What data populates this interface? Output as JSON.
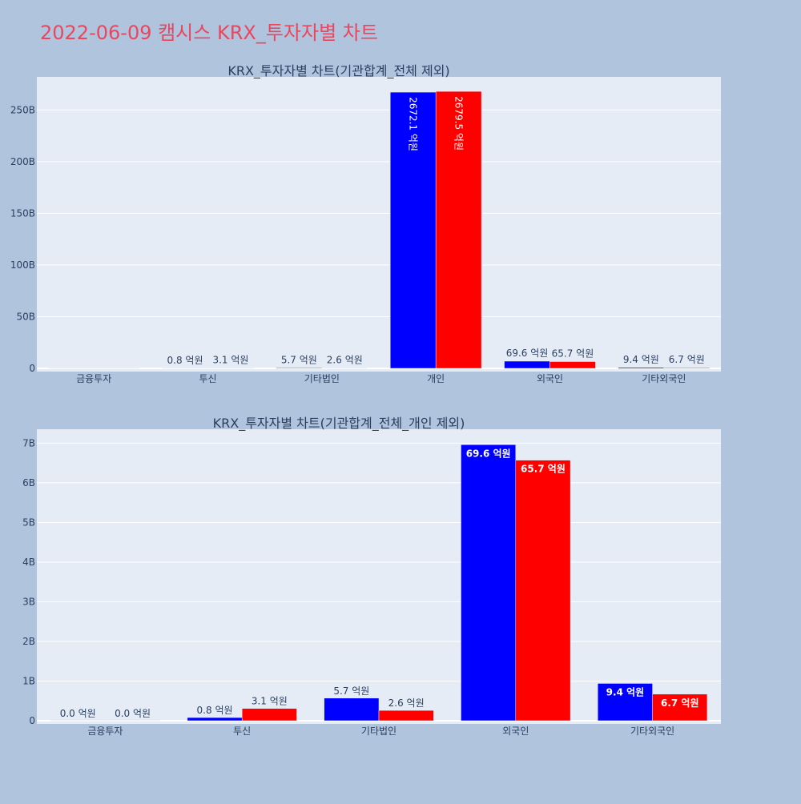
{
  "page_title": "2022-06-09 캠시스 KRX_투자자별 차트",
  "colors": {
    "page_bg": "#b0c4de",
    "plot_bg": "#e5ecf6",
    "title": "#e8475f",
    "text": "#2a3f5f",
    "series_a": "#0000ff",
    "series_b": "#ff0000"
  },
  "chart_data": [
    {
      "type": "bar",
      "title": "KRX_투자자별 차트(기관합계_전체 제외)",
      "categories": [
        "금융투자",
        "투신",
        "기타법인",
        "개인",
        "외국인",
        "기타외국인"
      ],
      "series": [
        {
          "values": [
            0.0,
            0.08,
            0.57,
            267.21,
            6.96,
            0.94
          ],
          "labels": [
            "",
            "0.8 억원",
            "5.7 억원",
            "2672.1 억원",
            "69.6 억원",
            "9.4 억원"
          ]
        },
        {
          "values": [
            0.0,
            0.31,
            0.26,
            267.95,
            6.57,
            0.67
          ],
          "labels": [
            "",
            "3.1 억원",
            "2.6 억원",
            "2679.5 억원",
            "65.7 억원",
            "6.7 억원"
          ]
        }
      ],
      "yticks": [
        0,
        50,
        100,
        150,
        200,
        250
      ],
      "ytick_labels": [
        "0",
        "50B",
        "100B",
        "150B",
        "200B",
        "250B"
      ],
      "ylim": [
        0,
        282
      ],
      "grid": true,
      "legend": "none"
    },
    {
      "type": "bar",
      "title": "KRX_투자자별 차트(기관합계_전체_개인 제외)",
      "categories": [
        "금융투자",
        "투신",
        "기타법인",
        "외국인",
        "기타외국인"
      ],
      "series": [
        {
          "values": [
            0.0,
            0.08,
            0.57,
            6.96,
            0.94
          ],
          "labels": [
            "0.0 억원",
            "0.8 억원",
            "5.7 억원",
            "69.6 억원",
            "9.4 억원"
          ]
        },
        {
          "values": [
            0.0,
            0.31,
            0.26,
            6.57,
            0.67
          ],
          "labels": [
            "0.0 억원",
            "3.1 억원",
            "2.6 억원",
            "65.7 억원",
            "6.7 억원"
          ]
        }
      ],
      "yticks": [
        0,
        1,
        2,
        3,
        4,
        5,
        6,
        7
      ],
      "ytick_labels": [
        "0",
        "1B",
        "2B",
        "3B",
        "4B",
        "5B",
        "6B",
        "7B"
      ],
      "ylim": [
        0,
        7.35
      ],
      "grid": true,
      "legend": "none"
    }
  ]
}
